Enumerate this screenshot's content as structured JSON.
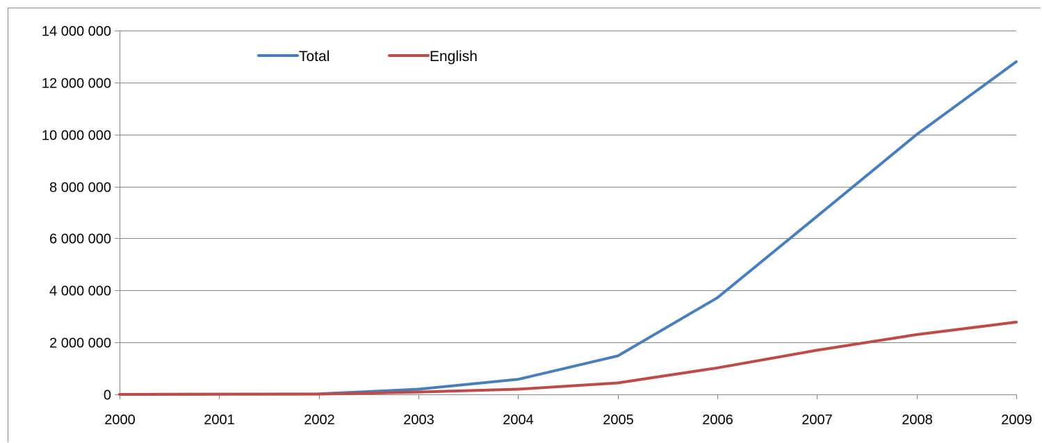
{
  "chart_data": {
    "type": "line",
    "title": "",
    "xlabel": "",
    "ylabel": "",
    "x": [
      "2000",
      "2001",
      "2002",
      "2003",
      "2004",
      "2005",
      "2006",
      "2007",
      "2008",
      "2009"
    ],
    "ylim": [
      0,
      14000000
    ],
    "y_ticks": [
      0,
      2000000,
      4000000,
      6000000,
      8000000,
      10000000,
      12000000,
      14000000
    ],
    "y_tick_labels": [
      "0",
      "2 000 000",
      "4 000 000",
      "6 000 000",
      "8 000 000",
      "10 000 000",
      "12 000 000",
      "14 000 000"
    ],
    "grid": true,
    "legend_position": "top-left",
    "series": [
      {
        "name": "Total",
        "color": "#4a7ebb",
        "values": [
          0,
          10000,
          20000,
          200000,
          580000,
          1480000,
          3720000,
          6850000,
          10000000,
          12800000
        ]
      },
      {
        "name": "English",
        "color": "#be4b48",
        "values": [
          0,
          5000,
          10000,
          90000,
          200000,
          440000,
          1020000,
          1700000,
          2300000,
          2780000
        ]
      }
    ]
  }
}
